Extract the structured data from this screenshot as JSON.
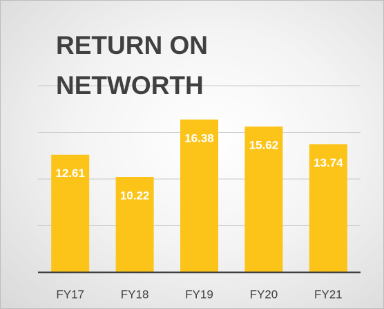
{
  "chart_data": {
    "type": "bar",
    "title": "RETURN ON NETWORTH",
    "categories": [
      "FY17",
      "FY18",
      "FY19",
      "FY20",
      "FY21"
    ],
    "values": [
      12.61,
      10.22,
      16.38,
      15.62,
      13.74
    ],
    "color": "#fcc419",
    "ylim": [
      0,
      20
    ],
    "yticks": [
      0,
      5,
      10,
      15,
      20
    ],
    "grid": true
  }
}
